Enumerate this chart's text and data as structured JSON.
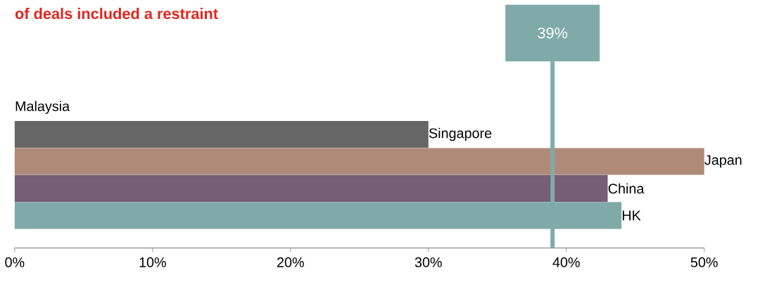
{
  "chart_data": {
    "type": "bar",
    "orientation": "horizontal",
    "title": "of deals included a restraint",
    "categories": [
      "Malaysia",
      "Singapore",
      "Japan",
      "China",
      "HK"
    ],
    "values": [
      0,
      30,
      50,
      43,
      44
    ],
    "colors": [
      "#666666",
      "#666666",
      "#b08a78",
      "#765f72",
      "#7faaa8"
    ],
    "xlim": [
      0,
      50
    ],
    "xticks": [
      {
        "value": 0,
        "label": "0%"
      },
      {
        "value": 10,
        "label": "10%"
      },
      {
        "value": 20,
        "label": "20%"
      },
      {
        "value": 30,
        "label": "30%"
      },
      {
        "value": 40,
        "label": "40%"
      },
      {
        "value": 50,
        "label": "50%"
      }
    ],
    "ref_lines": [
      {
        "axis": "x",
        "value": 39,
        "label": "39%",
        "color": "#7faaa8"
      }
    ]
  }
}
